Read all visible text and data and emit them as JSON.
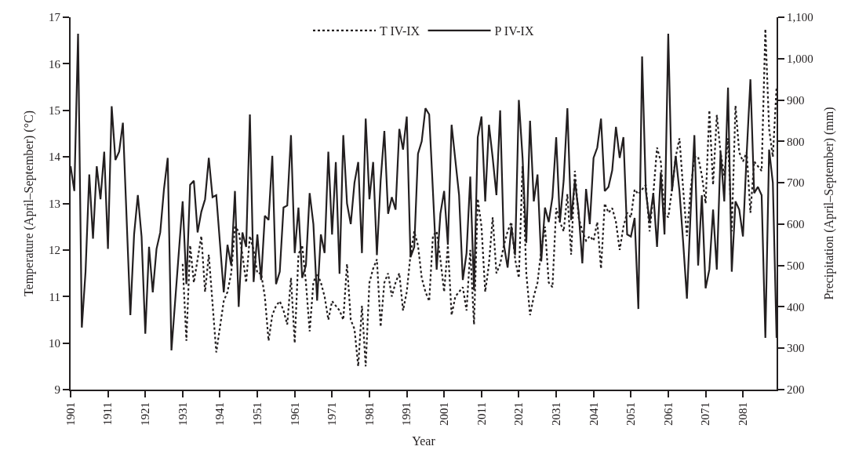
{
  "chart_data": {
    "type": "line",
    "xlabel": "Year",
    "ylabel": "Temperature (April–September) (°C)",
    "y2label": "Precipitation (April–September) (mm)",
    "xlim": [
      1901,
      2090
    ],
    "xticks": [
      1901,
      1911,
      1921,
      1931,
      1941,
      1951,
      1961,
      1971,
      1981,
      1991,
      2001,
      2011,
      2021,
      2031,
      2041,
      2051,
      2061,
      2071,
      2081
    ],
    "ylim": [
      9,
      17
    ],
    "yticks": [
      9,
      10,
      11,
      12,
      13,
      14,
      15,
      16,
      17
    ],
    "y2lim": [
      200,
      1100
    ],
    "y2ticks": [
      200,
      300,
      400,
      500,
      600,
      700,
      800,
      900,
      {
        "value": 1000,
        "label": "1,000"
      },
      {
        "value": 1100,
        "label": "1,100"
      }
    ],
    "grid": false,
    "legend": "top",
    "marker": "none",
    "series": [
      {
        "name": "T IV-IX",
        "color": "#231f20",
        "line_style": "dotted",
        "x": [
          1931,
          1932,
          1933,
          1934,
          1936,
          1937,
          1938,
          1940,
          1942,
          1943,
          1944,
          1945,
          1946,
          1947,
          1948,
          1949,
          1950,
          1951,
          1952,
          1953,
          1954,
          1955,
          1956,
          1957,
          1958,
          1959,
          1960,
          1961,
          1962,
          1963,
          1964,
          1965,
          1966,
          1967,
          1968,
          1969,
          1970,
          1971,
          1972,
          1973,
          1974,
          1975,
          1976,
          1977,
          1978,
          1979,
          1980,
          1981,
          1982,
          1983,
          1984,
          1985,
          1986,
          1987,
          1988,
          1989,
          1990,
          1991,
          1992,
          1993,
          1994,
          1995,
          1996,
          1997,
          1998,
          1999,
          2000,
          2001,
          2002,
          2003,
          2004,
          2005,
          2006,
          2007,
          2008,
          2009,
          2010,
          2011,
          2012,
          2013,
          2014,
          2015,
          2016,
          2017,
          2018,
          2019,
          2020,
          2021,
          2022,
          2023,
          2024,
          2025,
          2026,
          2027,
          2028,
          2029,
          2030,
          2031,
          2032,
          2033,
          2034,
          2035,
          2036,
          2037,
          2038,
          2039,
          2040,
          2041,
          2042,
          2043,
          2044,
          2045,
          2046,
          2047,
          2048,
          2049,
          2050,
          2051,
          2052,
          2053,
          2054,
          2055,
          2056,
          2057,
          2058,
          2059,
          2060,
          2061,
          2062,
          2063,
          2064,
          2065,
          2066,
          2067,
          2068,
          2069,
          2070,
          2071,
          2072,
          2073,
          2074,
          2075,
          2076,
          2077,
          2078,
          2079,
          2080,
          2081,
          2082,
          2083,
          2084,
          2085,
          2086,
          2087,
          2088,
          2089,
          2090
        ],
        "values": [
          11.7,
          10.05,
          12.1,
          11.3,
          12.3,
          11.1,
          11.9,
          9.8,
          10.9,
          11.1,
          11.5,
          12.5,
          12.4,
          11.9,
          11.3,
          12.3,
          12.0,
          11.5,
          11.5,
          11.0,
          10.05,
          10.6,
          10.8,
          10.9,
          10.7,
          10.4,
          11.4,
          10.0,
          11.9,
          12.1,
          11.3,
          10.25,
          11.3,
          11.5,
          11.3,
          11.0,
          10.5,
          10.9,
          10.8,
          10.7,
          10.5,
          11.7,
          10.5,
          10.3,
          9.5,
          10.8,
          9.5,
          11.3,
          11.6,
          11.8,
          10.35,
          11.3,
          11.5,
          11.0,
          11.3,
          11.5,
          10.7,
          11.1,
          11.9,
          12.4,
          12.1,
          11.4,
          11.1,
          10.9,
          12.3,
          12.4,
          11.8,
          11.1,
          12.1,
          10.6,
          11.0,
          11.1,
          11.2,
          10.7,
          12.0,
          10.4,
          13.1,
          12.5,
          11.1,
          11.7,
          12.7,
          11.5,
          11.7,
          12.1,
          12.4,
          12.6,
          11.8,
          11.4,
          13.8,
          11.5,
          10.6,
          11.0,
          11.3,
          12.0,
          12.5,
          11.3,
          11.2,
          12.9,
          12.6,
          12.4,
          13.2,
          11.9,
          13.7,
          12.7,
          12.4,
          12.2,
          12.3,
          12.2,
          12.6,
          11.6,
          13.0,
          12.8,
          12.9,
          12.6,
          12.0,
          12.5,
          12.8,
          12.7,
          13.3,
          13.2,
          13.3,
          13.4,
          12.4,
          13.2,
          14.2,
          13.9,
          12.8,
          12.7,
          13.3,
          14.0,
          14.4,
          13.3,
          12.3,
          13.3,
          14.0,
          14.0,
          13.6,
          13.0,
          15.0,
          13.4,
          14.9,
          14.1,
          13.6,
          14.4,
          12.4,
          15.1,
          14.1,
          13.9,
          14.1,
          12.8,
          13.9,
          13.8,
          13.7,
          16.75,
          14.6,
          14.0,
          15.5
        ]
      },
      {
        "name": "P IV-IX",
        "color": "#231f20",
        "line_style": "solid",
        "axis": "y2",
        "x": [
          1901,
          1902,
          1903,
          1904,
          1905,
          1906,
          1907,
          1908,
          1909,
          1910,
          1911,
          1912,
          1913,
          1914,
          1915,
          1917,
          1918,
          1919,
          1920,
          1921,
          1922,
          1923,
          1924,
          1925,
          1926,
          1927,
          1928,
          1931,
          1932,
          1933,
          1934,
          1935,
          1936,
          1937,
          1938,
          1939,
          1940,
          1942,
          1943,
          1944,
          1945,
          1946,
          1947,
          1948,
          1949,
          1950,
          1951,
          1952,
          1953,
          1954,
          1955,
          1956,
          1957,
          1958,
          1959,
          1960,
          1961,
          1962,
          1963,
          1964,
          1965,
          1966,
          1967,
          1968,
          1969,
          1970,
          1971,
          1972,
          1973,
          1974,
          1975,
          1976,
          1977,
          1978,
          1979,
          1980,
          1981,
          1982,
          1983,
          1984,
          1985,
          1986,
          1987,
          1988,
          1989,
          1990,
          1991,
          1992,
          1993,
          1994,
          1995,
          1996,
          1997,
          1998,
          1999,
          2000,
          2001,
          2002,
          2003,
          2004,
          2005,
          2006,
          2007,
          2008,
          2009,
          2010,
          2011,
          2012,
          2013,
          2014,
          2015,
          2016,
          2017,
          2018,
          2019,
          2020,
          2021,
          2022,
          2023,
          2024,
          2025,
          2026,
          2027,
          2028,
          2029,
          2030,
          2031,
          2032,
          2033,
          2034,
          2035,
          2036,
          2037,
          2038,
          2039,
          2040,
          2041,
          2042,
          2043,
          2044,
          2045,
          2046,
          2047,
          2048,
          2049,
          2050,
          2051,
          2052,
          2053,
          2054,
          2055,
          2056,
          2057,
          2058,
          2059,
          2060,
          2061,
          2062,
          2063,
          2064,
          2065,
          2066,
          2067,
          2068,
          2069,
          2070,
          2071,
          2072,
          2073,
          2074,
          2075,
          2076,
          2077,
          2078,
          2079,
          2080,
          2081,
          2082,
          2083,
          2084,
          2085,
          2086,
          2087,
          2088,
          2089,
          2090
        ],
        "values": [
          740,
          680,
          1060,
          350,
          485,
          720,
          565,
          740,
          660,
          775,
          540,
          885,
          755,
          775,
          845,
          380,
          575,
          670,
          570,
          335,
          545,
          435,
          540,
          580,
          685,
          760,
          295,
          655,
          455,
          695,
          705,
          580,
          630,
          660,
          760,
          665,
          670,
          435,
          550,
          500,
          680,
          400,
          580,
          545,
          865,
          460,
          575,
          465,
          620,
          610,
          765,
          455,
          485,
          640,
          645,
          815,
          530,
          640,
          470,
          500,
          675,
          600,
          415,
          575,
          530,
          775,
          575,
          750,
          480,
          815,
          650,
          600,
          700,
          750,
          530,
          855,
          660,
          750,
          525,
          705,
          825,
          625,
          665,
          635,
          830,
          780,
          860,
          520,
          545,
          770,
          800,
          880,
          865,
          680,
          490,
          625,
          680,
          550,
          840,
          755,
          670,
          465,
          530,
          715,
          440,
          810,
          860,
          655,
          840,
          760,
          670,
          875,
          550,
          495,
          595,
          525,
          900,
          760,
          555,
          850,
          655,
          720,
          510,
          640,
          605,
          665,
          810,
          605,
          705,
          880,
          610,
          705,
          630,
          505,
          685,
          600,
          760,
          785,
          855,
          680,
          690,
          730,
          835,
          760,
          810,
          575,
          570,
          615,
          395,
          1005,
          680,
          605,
          675,
          545,
          725,
          575,
          1060,
          680,
          765,
          680,
          555,
          420,
          630,
          815,
          500,
          670,
          445,
          490,
          635,
          490,
          775,
          655,
          930,
          485,
          655,
          635,
          570,
          770,
          950,
          675,
          690,
          670,
          325,
          780,
          700,
          325
        ]
      }
    ]
  }
}
